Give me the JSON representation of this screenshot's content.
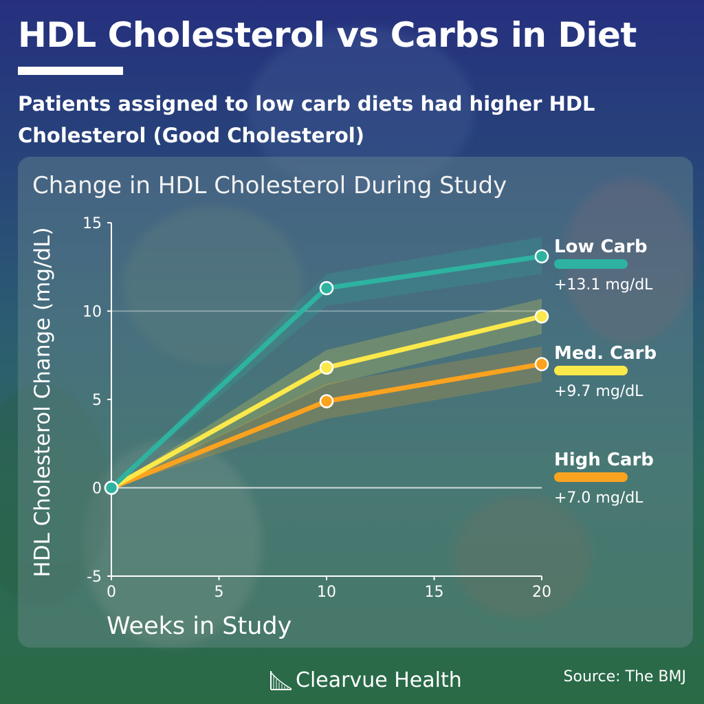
{
  "header": {
    "title": "HDL Cholesterol vs Carbs in Diet",
    "subtitle": "Patients assigned to low carb diets had higher HDL Cholesterol (Good Cholesterol)"
  },
  "footer": {
    "brand": "Clearvue Health",
    "brand_icon": "logo-icon",
    "source": "Source: The BMJ"
  },
  "colors": {
    "low_carb": "#2db3a0",
    "med_carb": "#fbe84a",
    "high_carb": "#fba21f",
    "background_top": "#26307f",
    "background_bottom": "#2a6a45"
  },
  "chart_data": {
    "type": "line",
    "title": "Change in HDL Cholesterol During Study",
    "xlabel": "Weeks in Study",
    "ylabel": "HDL Cholesterol Change (mg/dL)",
    "xlim": [
      0,
      20
    ],
    "ylim": [
      -5,
      15
    ],
    "x_ticks": [
      "0",
      "5",
      "10",
      "15",
      "20"
    ],
    "y_ticks": [
      "-5",
      "0",
      "5",
      "10",
      "15"
    ],
    "x": [
      0,
      10,
      20
    ],
    "gridlines_y": [
      0,
      10
    ],
    "legend_position": "right",
    "series": [
      {
        "name": "Low Carb",
        "label": "+13.1 mg/dL",
        "color": "#2db3a0",
        "values": [
          0,
          11.3,
          13.1
        ],
        "band": [
          [
            0,
            0
          ],
          [
            10.3,
            12.1
          ],
          [
            12.1,
            14.2
          ]
        ]
      },
      {
        "name": "Med. Carb",
        "label": "+9.7 mg/dL",
        "color": "#fbe84a",
        "values": [
          0,
          6.8,
          9.7
        ],
        "band": [
          [
            0,
            0
          ],
          [
            5.8,
            7.8
          ],
          [
            8.7,
            10.7
          ]
        ]
      },
      {
        "name": "High Carb",
        "label": "+7.0 mg/dL",
        "color": "#fba21f",
        "values": [
          0,
          4.9,
          7.0
        ],
        "band": [
          [
            0,
            0
          ],
          [
            3.9,
            5.9
          ],
          [
            6.0,
            8.0
          ]
        ]
      }
    ]
  }
}
